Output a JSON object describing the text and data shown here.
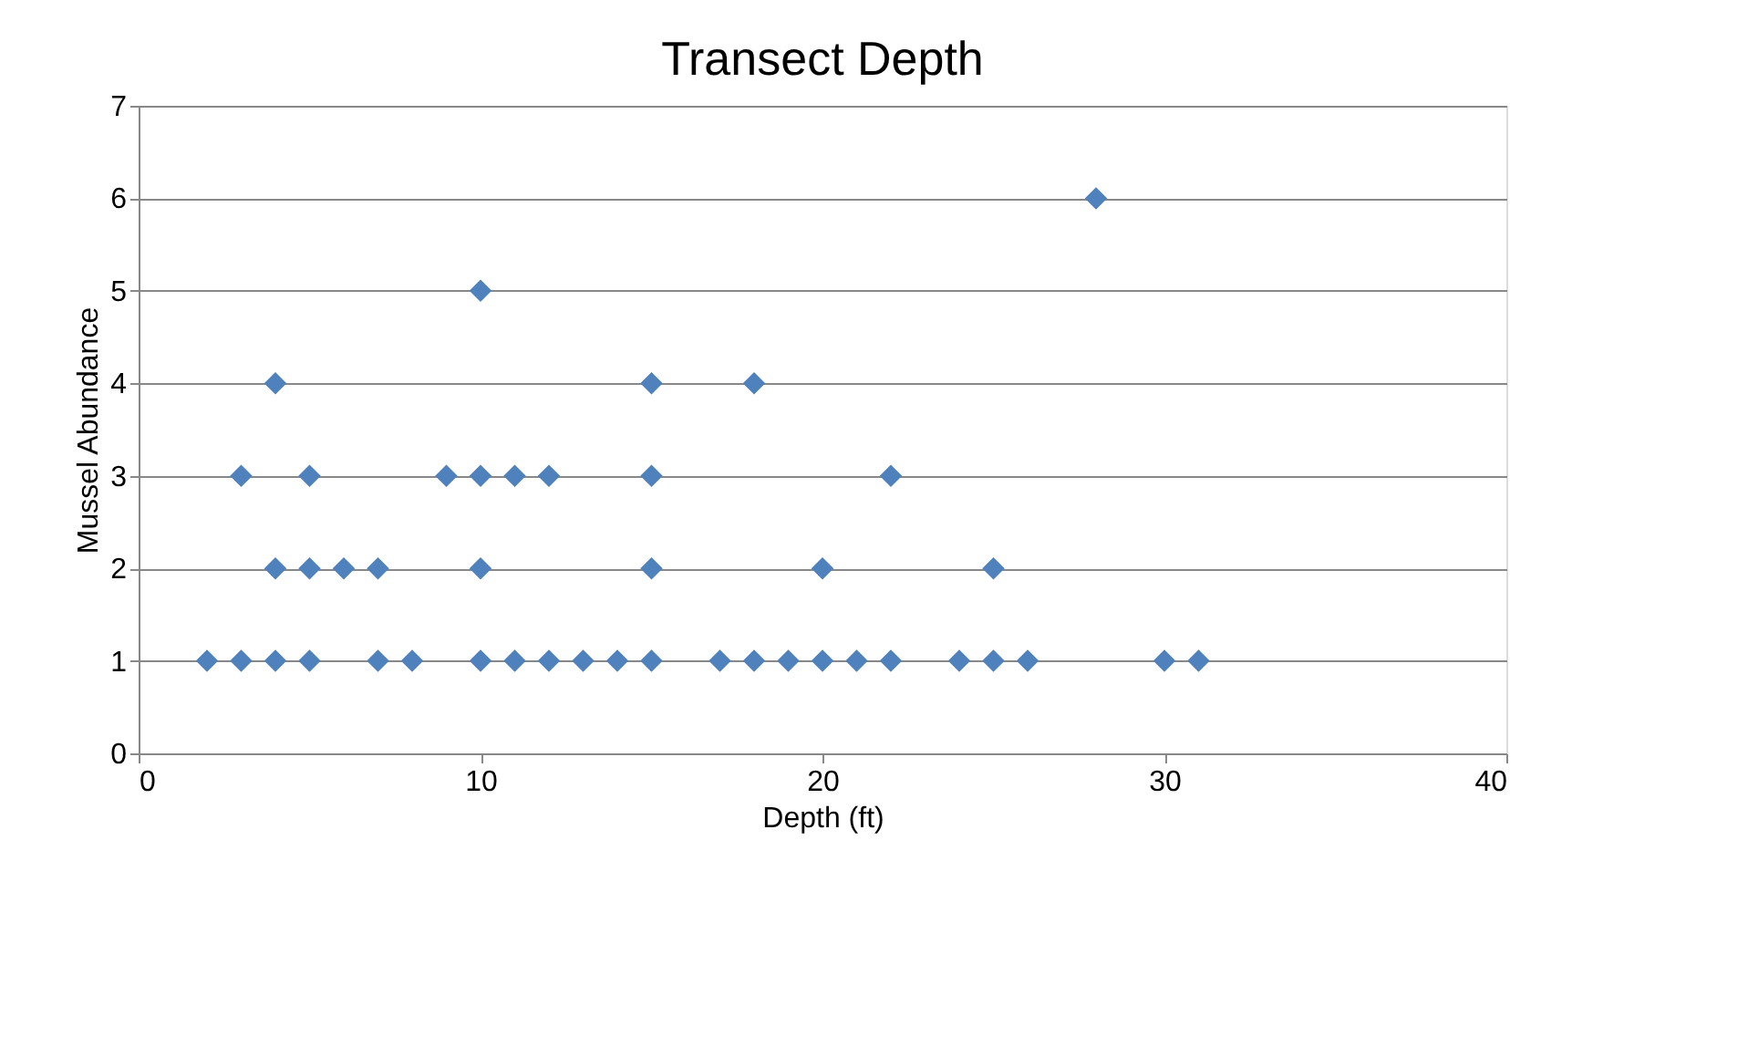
{
  "chart_data": {
    "type": "scatter",
    "title": "Transect Depth",
    "xlabel": "Depth (ft)",
    "ylabel": "Mussel Abundance",
    "series": [
      {
        "color": "#4f81bd",
        "x": [
          2,
          3,
          4,
          5,
          7,
          8,
          10,
          11,
          12,
          13,
          14,
          15,
          17,
          18,
          19,
          20,
          21,
          22,
          24,
          25,
          26,
          30,
          31,
          4,
          5,
          6,
          7,
          10,
          15,
          20,
          25,
          3,
          5,
          9,
          10,
          11,
          12,
          15,
          22,
          4,
          15,
          18,
          10,
          28
        ],
        "values": [
          1,
          1,
          1,
          1,
          1,
          1,
          1,
          1,
          1,
          1,
          1,
          1,
          1,
          1,
          1,
          1,
          1,
          1,
          1,
          1,
          1,
          1,
          1,
          2,
          2,
          2,
          2,
          2,
          2,
          2,
          2,
          3,
          3,
          3,
          3,
          3,
          3,
          3,
          3,
          4,
          4,
          4,
          5,
          6
        ]
      }
    ],
    "xlim": [
      0,
      40
    ],
    "xticks": [
      0,
      10,
      20,
      30,
      40
    ],
    "ylim": [
      0,
      7
    ],
    "yticks": [
      0,
      1,
      2,
      3,
      4,
      5,
      6,
      7
    ],
    "grid": "y",
    "marker": "diamond",
    "legend": false
  }
}
